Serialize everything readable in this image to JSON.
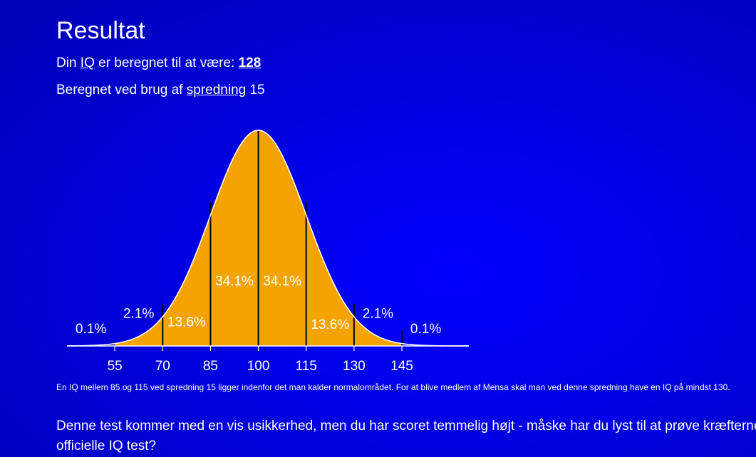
{
  "result": {
    "title": "Resultat",
    "iq_prefix": "Din ",
    "iq_link": "IQ",
    "iq_middle": " er beregnet til at være: ",
    "iq_score": "128",
    "spread_prefix": "Beregnet ved brug af ",
    "spread_link": "spredning",
    "spread_value": " 15"
  },
  "chart_data": {
    "type": "area",
    "title": "",
    "xlabel": "",
    "ylabel": "",
    "x_ticks": [
      "55",
      "70",
      "85",
      "100",
      "115",
      "130",
      "145"
    ],
    "xlim": [
      40,
      166
    ],
    "mean": 100,
    "sd": 15,
    "divider_lines": [
      70,
      85,
      100,
      115,
      130,
      145
    ],
    "fill_range": [
      55,
      145
    ],
    "fill_color": "#f4a300",
    "line_color": "#ffffff",
    "segment_labels": [
      {
        "text": "0.1%",
        "x": 47.5,
        "level": 0.06
      },
      {
        "text": "2.1%",
        "x": 62.5,
        "level": 0.13
      },
      {
        "text": "13.6%",
        "x": 77.5,
        "level": 0.09,
        "inside": true
      },
      {
        "text": "34.1%",
        "x": 92.5,
        "level": 0.28,
        "inside": true
      },
      {
        "text": "34.1%",
        "x": 107.5,
        "level": 0.28,
        "inside": true
      },
      {
        "text": "13.6%",
        "x": 122.5,
        "level": 0.08,
        "inside": true
      },
      {
        "text": "2.1%",
        "x": 137.5,
        "level": 0.13
      },
      {
        "text": "0.1%",
        "x": 152.5,
        "level": 0.06
      }
    ]
  },
  "note": "En IQ mellem 85 og 115 ved spredning 15 ligger indenfor det man kalder normalområdet. For at blive medlem af Mensa skal man ved denne spredning have en IQ på mindst 130.",
  "bottom_text": {
    "line1": "Denne test kommer med en vis usikkerhed, men du har scoret temmelig højt - måske har du lyst til at prøve kræfterne med en",
    "line2": "officielle IQ test?"
  }
}
